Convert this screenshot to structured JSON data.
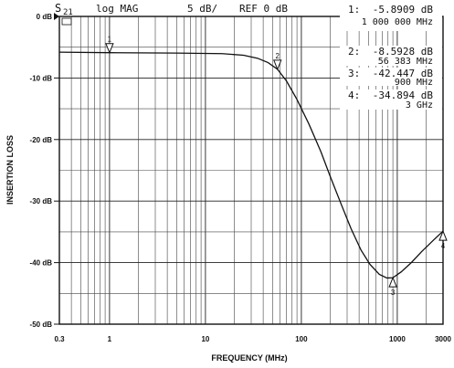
{
  "header": {
    "param_main": "S",
    "param_sub": "21",
    "format": "log MAG",
    "scale": "5 dB/",
    "ref": "REF 0 dB"
  },
  "markers": [
    {
      "id": "1",
      "label": "1:",
      "value": "-5.8909 dB",
      "freq": "1 000 000 MHz"
    },
    {
      "id": "2",
      "label": "2:",
      "value": "-8.5928 dB",
      "freq": "56 383 MHz"
    },
    {
      "id": "3",
      "label": "3:",
      "value": "-42.447 dB",
      "freq": "900 MHz"
    },
    {
      "id": "4",
      "label": "4:",
      "value": "-34.894 dB",
      "freq": "3 GHz"
    }
  ],
  "chart_data": {
    "type": "line",
    "xlabel": "FREQUENCY (MHz)",
    "ylabel": "INSERTION LOSS",
    "xscale": "log",
    "xlim": [
      0.3,
      3000
    ],
    "ylim": [
      -50,
      0
    ],
    "grid": true,
    "x_ticks": [
      "0.3",
      "1",
      "10",
      "100",
      "1000",
      "3000"
    ],
    "y_ticks": [
      "0 dB",
      "-10 dB",
      "-20 dB",
      "-30 dB",
      "-40 dB",
      "-50 dB"
    ],
    "series": [
      {
        "name": "S21",
        "x": [
          0.3,
          1,
          5,
          15,
          25,
          35,
          45,
          56.383,
          70,
          90,
          120,
          160,
          200,
          260,
          330,
          420,
          520,
          650,
          780,
          900,
          1100,
          1400,
          1800,
          2400,
          3000
        ],
        "y": [
          -5.8,
          -5.89,
          -5.95,
          -6.05,
          -6.3,
          -6.8,
          -7.5,
          -8.59,
          -10.5,
          -13.5,
          -17.5,
          -22.0,
          -26.0,
          -30.5,
          -34.5,
          -38.0,
          -40.3,
          -41.9,
          -42.5,
          -42.45,
          -41.5,
          -40.0,
          -38.2,
          -36.3,
          -34.89
        ]
      }
    ],
    "marker_points": [
      {
        "label": "1",
        "x": 1,
        "y": -5.8909
      },
      {
        "label": "2",
        "x": 56.383,
        "y": -8.5928
      },
      {
        "label": "3",
        "x": 900,
        "y": -42.447
      },
      {
        "label": "4",
        "x": 3000,
        "y": -34.894
      }
    ]
  }
}
